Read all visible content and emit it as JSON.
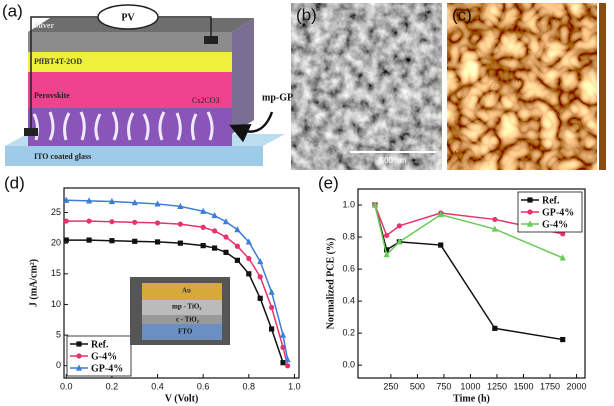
{
  "panels": {
    "a": {
      "label": "(a)",
      "pv": "PV",
      "layers": [
        "Silver",
        "PffBT4T-2OD",
        "Perovskite"
      ],
      "interlayer": "Cs2CO3",
      "mp": "mp-GP",
      "substrate": "ITO coated glass"
    },
    "b": {
      "label": "(b)",
      "scale_bar": "500 nm"
    },
    "c": {
      "label": "(c)"
    },
    "d": {
      "label": "(d)",
      "inset": [
        "Au",
        "mp - TiO₂",
        "c - TiO₂",
        "FTO"
      ]
    },
    "e": {
      "label": "(e)"
    }
  },
  "chart_data": [
    {
      "type": "line",
      "xlabel": "V (Volt)",
      "ylabel": "J (mA/cm²)",
      "x": [
        0,
        0.1,
        0.2,
        0.3,
        0.4,
        0.5,
        0.6,
        0.65,
        0.7,
        0.75,
        0.8,
        0.85,
        0.9,
        0.95,
        0.97
      ],
      "series": [
        {
          "name": "Ref.",
          "color": "#111111",
          "marker": "square",
          "values": [
            20.5,
            20.5,
            20.4,
            20.3,
            20.2,
            20,
            19.6,
            19.2,
            18.5,
            17.2,
            15,
            11,
            6,
            0.5,
            null
          ]
        },
        {
          "name": "G-4%",
          "color": "#e8336a",
          "marker": "circle",
          "values": [
            23.6,
            23.6,
            23.5,
            23.4,
            23.3,
            23.1,
            22.6,
            22,
            21,
            19.5,
            17.5,
            14.5,
            9.5,
            3,
            0
          ]
        },
        {
          "name": "GP-4%",
          "color": "#3b7dd8",
          "marker": "triangle",
          "values": [
            27,
            26.9,
            26.8,
            26.6,
            26.4,
            26,
            25.2,
            24.5,
            23.5,
            22.2,
            20.2,
            17,
            12,
            5,
            1
          ]
        }
      ],
      "xlim": [
        -0.01,
        1.02
      ],
      "ylim": [
        -2,
        29
      ],
      "xticks": [
        {
          "value": 0,
          "label": "0.0"
        },
        0.2,
        0.4,
        0.6,
        0.8,
        {
          "value": 1,
          "label": "1.0"
        }
      ],
      "yticks": [
        0,
        5,
        10,
        15,
        20,
        25
      ],
      "legend": "lower left"
    },
    {
      "type": "line",
      "xlabel": "Time (h)",
      "ylabel": "Normalized PCE (%)",
      "x": [
        100,
        210,
        330,
        720,
        1230,
        1870
      ],
      "series": [
        {
          "name": "Ref.",
          "color": "#111111",
          "marker": "square",
          "values": [
            1.0,
            0.72,
            0.77,
            0.75,
            0.23,
            0.16
          ]
        },
        {
          "name": "GP-4%",
          "color": "#e8336a",
          "marker": "circle",
          "values": [
            1.0,
            0.81,
            0.87,
            0.95,
            0.91,
            0.82
          ]
        },
        {
          "name": "G-4%",
          "color": "#66cc55",
          "marker": "triangle",
          "values": [
            1.0,
            0.69,
            0.77,
            0.94,
            0.85,
            0.67
          ]
        }
      ],
      "xlim": [
        -60,
        2080
      ],
      "ylim": [
        -0.08,
        1.1
      ],
      "xticks": [
        250,
        500,
        750,
        1000,
        1250,
        1500,
        1750,
        2000
      ],
      "yticks": [
        {
          "value": 0,
          "label": "0.0"
        },
        0.2,
        0.4,
        0.6,
        0.8,
        {
          "value": 1,
          "label": "1.0"
        }
      ],
      "legend": "upper right"
    }
  ]
}
